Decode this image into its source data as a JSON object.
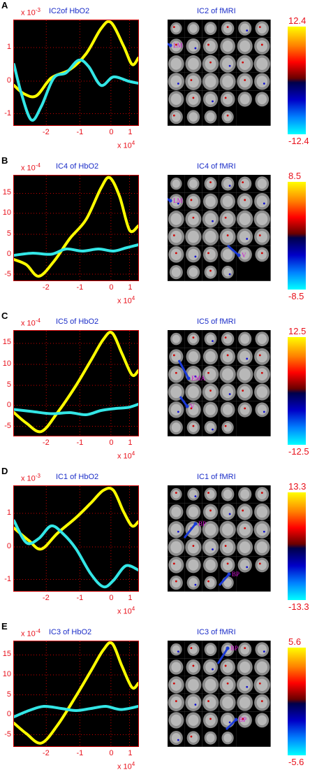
{
  "panels": [
    {
      "label": "A",
      "hbo2_title": "IC2of HbO2",
      "fmri_title": "IC2 of fMRI",
      "y_exponent": "-3",
      "x_exponent": "4",
      "y_ticks": [
        "1",
        "0",
        "-1"
      ],
      "x_ticks": [
        "-2",
        "-1",
        "0",
        "1"
      ],
      "colorbar_max": "12.4",
      "colorbar_min": "-12.4",
      "annotations": [
        "LM"
      ]
    },
    {
      "label": "B",
      "hbo2_title": "IC4 of HbO2",
      "fmri_title": "IC4 of fMRI",
      "y_exponent": "-4",
      "x_exponent": "4",
      "y_ticks": [
        "15",
        "10",
        "5",
        "0",
        "-5"
      ],
      "x_ticks": [
        "-2",
        "-1",
        "0",
        "1"
      ],
      "colorbar_max": "8.5",
      "colorbar_min": "-8.5",
      "annotations": [
        "LM",
        "V"
      ]
    },
    {
      "label": "C",
      "hbo2_title": "IC5 of HbO2",
      "fmri_title": "IC5 of fMRI",
      "y_exponent": "-4",
      "x_exponent": "4",
      "y_ticks": [
        "15",
        "10",
        "5",
        "0",
        "-5"
      ],
      "x_ticks": [
        "-2",
        "-1",
        "0",
        "1"
      ],
      "colorbar_max": "12.5",
      "colorbar_min": "-12.5",
      "annotations": [
        "EMA",
        "V"
      ]
    },
    {
      "label": "D",
      "hbo2_title": "IC1 of HbO2",
      "fmri_title": "IC1 of fMRI",
      "y_exponent": "-3",
      "x_exponent": "4",
      "y_ticks": [
        "1",
        "0",
        "-1"
      ],
      "x_ticks": [
        "-2",
        "-1",
        "0",
        "1"
      ],
      "colorbar_max": "13.3",
      "colorbar_min": "-13.3",
      "annotations": [
        "BP",
        "BP"
      ]
    },
    {
      "label": "E",
      "hbo2_title": "IC3 of HbO2",
      "fmri_title": "IC3 of fMRI",
      "y_exponent": "-4",
      "x_exponent": "4",
      "y_ticks": [
        "15",
        "10",
        "5",
        "0",
        "-5"
      ],
      "x_ticks": [
        "-2",
        "-1",
        "0",
        "1"
      ],
      "colorbar_max": "5.6",
      "colorbar_min": "-5.6",
      "annotations": [
        "BP",
        "BP"
      ]
    }
  ],
  "colors": {
    "yellow_curve": "#ffff00",
    "cyan_curve": "#33e6e6",
    "axis_text": "#e8101a",
    "title_text": "#1a2cc8",
    "annotation": "#d414d4",
    "arrow": "#1a3ad8"
  }
}
